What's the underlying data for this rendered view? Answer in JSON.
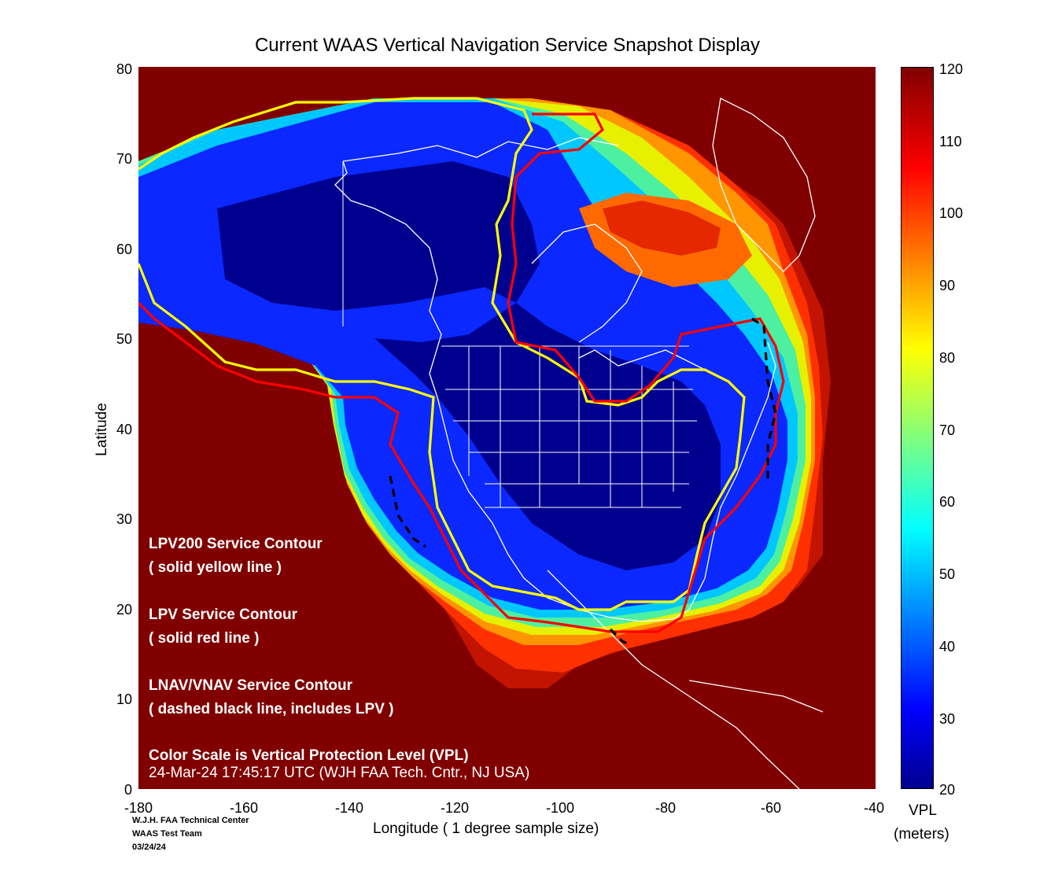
{
  "title": "Current WAAS Vertical Navigation Service Snapshot Display",
  "chart_data": {
    "type": "heatmap",
    "xlabel": "Longitude   ( 1 degree sample size)",
    "ylabel": "Latitude",
    "xlim": [
      -180,
      -40
    ],
    "ylim": [
      0,
      80
    ],
    "xticks": [
      "-180",
      "-160",
      "-140",
      "-120",
      "-100",
      "-80",
      "-60",
      "-40"
    ],
    "yticks": [
      "80",
      "70",
      "60",
      "50",
      "40",
      "30",
      "20",
      "10",
      "0"
    ],
    "colorbar": {
      "label_line1": "VPL",
      "label_line2": "(meters)",
      "range": [
        20,
        120
      ],
      "ticks": [
        "120",
        "110",
        "100",
        "90",
        "80",
        "70",
        "60",
        "50",
        "40",
        "30",
        "20"
      ],
      "colormap": "jet"
    },
    "contours": [
      {
        "name": "LPV200 Service Contour",
        "style": "solid yellow line",
        "color": "#ffff00"
      },
      {
        "name": "LPV Service Contour",
        "style": "solid red line",
        "color": "#ff0000"
      },
      {
        "name": "LNAV/VNAV Service Contour",
        "style": "dashed black line, includes LPV",
        "color": "#000000"
      }
    ]
  },
  "annotations": {
    "lpv200_title": "LPV200 Service Contour",
    "lpv200_sub": "( solid yellow line )",
    "lpv_title": "LPV Service Contour",
    "lpv_sub": "( solid red line )",
    "lnav_title": "LNAV/VNAV Service Contour",
    "lnav_sub": "( dashed black line, includes LPV )",
    "color_scale": "Color Scale is Vertical Protection Level (VPL)",
    "timestamp": "24-Mar-24 17:45:17 UTC  (WJH FAA Tech. Cntr., NJ USA)"
  },
  "footer": {
    "line1": "W.J.H. FAA Technical Center",
    "line2": "WAAS Test Team",
    "line3": "03/24/24"
  },
  "colors": {
    "background_fill": "#800000",
    "coastline": "#ffffff",
    "lpv200": "#ffff00",
    "lpv": "#ff0000",
    "lnav_vnav": "#000000"
  }
}
